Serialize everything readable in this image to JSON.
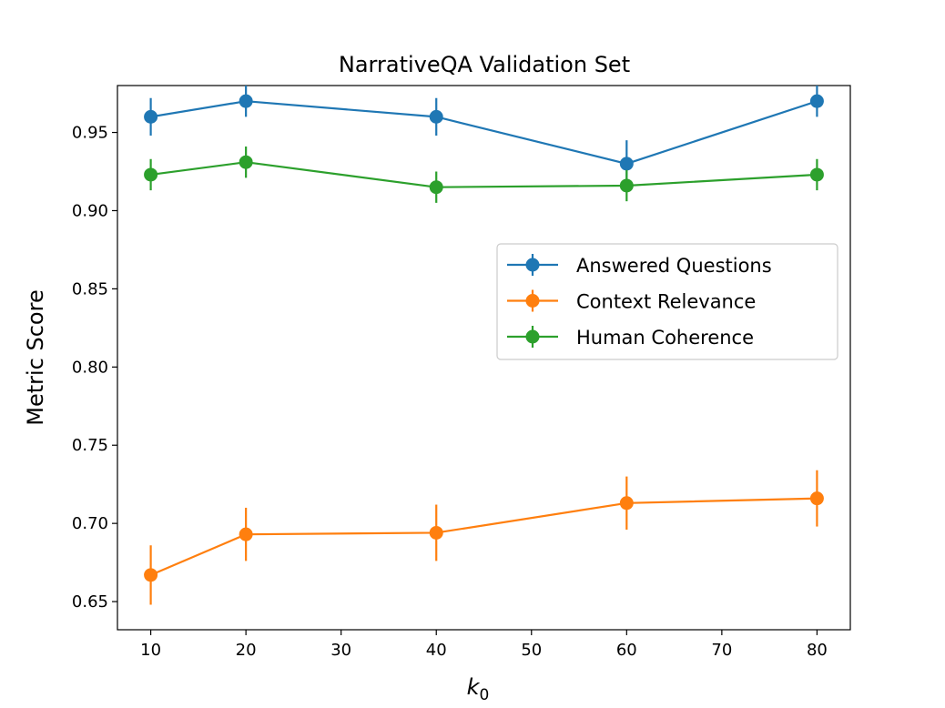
{
  "chart_data": {
    "type": "line",
    "title": "NarrativeQA Validation Set",
    "xlabel": "k",
    "xlabel_subscript": "0",
    "ylabel": "Metric Score",
    "x": [
      10,
      20,
      40,
      60,
      80
    ],
    "xlim": [
      6.5,
      83.5
    ],
    "ylim": [
      0.632,
      0.98
    ],
    "xticks": [
      10,
      20,
      30,
      40,
      50,
      60,
      70,
      80
    ],
    "yticks": [
      0.65,
      0.7,
      0.75,
      0.8,
      0.85,
      0.9,
      0.95
    ],
    "grid": false,
    "legend_position": "center-right",
    "series": [
      {
        "name": "Answered Questions",
        "color": "#1f77b4",
        "values": [
          0.96,
          0.97,
          0.96,
          0.93,
          0.97
        ],
        "errors": [
          0.012,
          0.01,
          0.012,
          0.015,
          0.01
        ]
      },
      {
        "name": "Context Relevance",
        "color": "#ff7f0e",
        "values": [
          0.667,
          0.693,
          0.694,
          0.713,
          0.716
        ],
        "errors": [
          0.019,
          0.017,
          0.018,
          0.017,
          0.018
        ]
      },
      {
        "name": "Human Coherence",
        "color": "#2ca02c",
        "values": [
          0.923,
          0.931,
          0.915,
          0.916,
          0.923
        ],
        "errors": [
          0.01,
          0.01,
          0.01,
          0.01,
          0.01
        ]
      }
    ]
  }
}
